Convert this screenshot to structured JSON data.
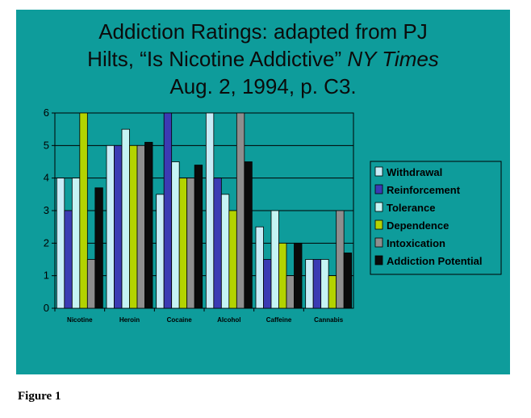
{
  "title": {
    "line1": "Addiction Ratings: adapted from PJ",
    "line2_prefix": "Hilts, “Is Nicotine Addictive” ",
    "line2_italic": "NY Times",
    "line3": "Aug. 2, 1994, p. C3."
  },
  "caption": "Figure 1",
  "colors": {
    "slide_background": "#0e9c9b",
    "plot_background": "#0e9c9b"
  },
  "chart_data": {
    "type": "bar",
    "categories": [
      "Nicotine",
      "Heroin",
      "Cocaine",
      "Alcohol",
      "Caffeine",
      "Cannabis"
    ],
    "ylim": [
      0,
      6
    ],
    "yticks": [
      0,
      1,
      2,
      3,
      4,
      5,
      6
    ],
    "grid": true,
    "legend": "right",
    "series": [
      {
        "name": "Withdrawal",
        "color": "#c8ecf7",
        "values": [
          4,
          5,
          3.5,
          6,
          2.5,
          1.5
        ]
      },
      {
        "name": "Reinforcement",
        "color": "#3b3bb3",
        "values": [
          3,
          5,
          6,
          4,
          1.5,
          1.5
        ]
      },
      {
        "name": "Tolerance",
        "color": "#c6f4f4",
        "values": [
          4,
          5.5,
          4.5,
          3.5,
          3,
          1.5
        ]
      },
      {
        "name": "Dependence",
        "color": "#b3d300",
        "values": [
          6,
          5,
          4,
          3,
          2,
          1
        ]
      },
      {
        "name": "Intoxication",
        "color": "#8e8e8e",
        "values": [
          1.5,
          5,
          4,
          6,
          1,
          3
        ]
      },
      {
        "name": "Addiction Potential",
        "color": "#0a0a0a",
        "values": [
          3.7,
          5.1,
          4.4,
          4.5,
          2,
          1.7
        ]
      }
    ]
  }
}
